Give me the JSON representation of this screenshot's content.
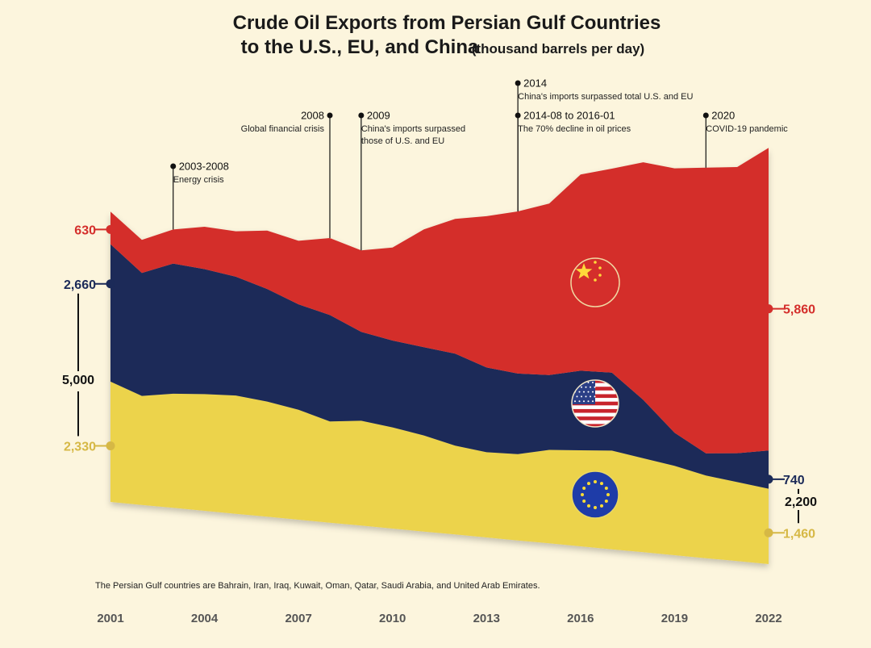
{
  "chart_data": {
    "type": "area",
    "title_line1": "Crude Oil Exports from Persian Gulf Countries",
    "title_line2": "to the U.S., EU, and China",
    "title_unit": "(thousand barrels per day)",
    "x_ticks": [
      "2001",
      "2004",
      "2007",
      "2010",
      "2013",
      "2016",
      "2019",
      "2022"
    ],
    "x": [
      2001,
      2002,
      2003,
      2004,
      2005,
      2006,
      2007,
      2008,
      2009,
      2010,
      2011,
      2012,
      2013,
      2014,
      2015,
      2016,
      2017,
      2018,
      2019,
      2020,
      2021,
      2022
    ],
    "series": [
      {
        "key": "eu",
        "values": [
          2330,
          2110,
          2210,
          2260,
          2290,
          2230,
          2130,
          1960,
          2030,
          1960,
          1860,
          1720,
          1650,
          1670,
          1810,
          1860,
          1910,
          1820,
          1730,
          1600,
          1530,
          1460
        ]
      },
      {
        "key": "us",
        "values": [
          2660,
          2380,
          2520,
          2420,
          2300,
          2180,
          2040,
          2060,
          1720,
          1680,
          1710,
          1780,
          1640,
          1560,
          1450,
          1540,
          1510,
          1130,
          640,
          430,
          560,
          740
        ]
      },
      {
        "key": "china",
        "values": [
          630,
          640,
          660,
          820,
          880,
          1130,
          1230,
          1490,
          1580,
          1800,
          2280,
          2610,
          2930,
          3140,
          3320,
          3800,
          3950,
          4600,
          5120,
          5530,
          5540,
          5860
        ]
      }
    ],
    "end_labels": {
      "start": {
        "china": "630",
        "us": "2,660",
        "total": "5,000",
        "eu": "2,330"
      },
      "end": {
        "china": "5,860",
        "us": "740",
        "total": "2,200",
        "eu": "1,460"
      }
    },
    "annotations": [
      {
        "year": 2003,
        "title": "2003-2008",
        "sub": [
          "Energy crisis"
        ]
      },
      {
        "year": 2008,
        "title": "2008",
        "sub": [
          "Global financial crisis"
        ],
        "align": "right"
      },
      {
        "year": 2009,
        "title": "2009",
        "sub": [
          "China's imports surpassed",
          "those of U.S. and EU"
        ]
      },
      {
        "year": 2014,
        "title": "2014",
        "sub": [
          "China's imports surpassed total U.S. and EU"
        ],
        "tier": "top"
      },
      {
        "year": 2014,
        "title": "2014-08 to 2016-01",
        "sub": [
          "The 70% decline in oil prices"
        ]
      },
      {
        "year": 2020,
        "title": "2020",
        "sub": [
          "COVID-19 pandemic"
        ]
      }
    ],
    "footnote": "The Persian Gulf countries are Bahrain, Iran, Iraq, Kuwait, Oman, Qatar, Saudi Arabia, and United Arab Emirates.",
    "colors": {
      "china": "#d42e2b",
      "us": "#1b2a58",
      "eu": "#ecd34b",
      "china_label": "#d42e2b",
      "us_label": "#1b2a58",
      "eu_label": "#d6b845",
      "background": "#fcf5dd"
    },
    "icons": {
      "china": "china-flag-icon",
      "us": "us-flag-icon",
      "eu": "eu-flag-icon"
    }
  }
}
